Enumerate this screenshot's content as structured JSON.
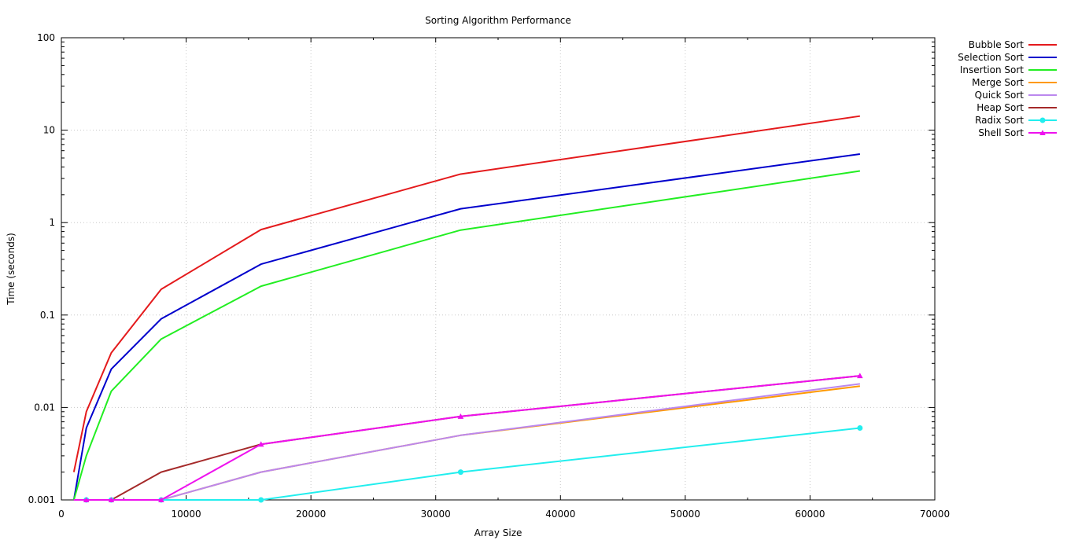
{
  "chart_data": {
    "type": "line",
    "title": "Sorting Algorithm Performance",
    "xlabel": "Array Size",
    "ylabel": "Time (seconds)",
    "xlim": [
      0,
      70000
    ],
    "ylim": [
      0.001,
      100
    ],
    "yscale": "log",
    "grid": true,
    "legend_position": "outside-right-top",
    "x_ticks": [
      0,
      10000,
      20000,
      30000,
      40000,
      50000,
      60000,
      70000
    ],
    "y_ticks": [
      0.001,
      0.01,
      0.1,
      1,
      10,
      100
    ],
    "x_tick_labels": [
      "0",
      "10000",
      "20000",
      "30000",
      "40000",
      "50000",
      "60000",
      "70000"
    ],
    "y_tick_labels": [
      "0.001",
      "0.01",
      "0.1",
      "1",
      "10",
      "100"
    ],
    "x": [
      1000,
      2000,
      4000,
      8000,
      16000,
      32000,
      64000
    ],
    "series": [
      {
        "name": "Bubble Sort",
        "color": "#e41a1c",
        "marker": "none",
        "values": [
          0.002,
          0.009,
          0.039,
          0.19,
          0.84,
          3.35,
          14.2
        ]
      },
      {
        "name": "Selection Sort",
        "color": "#0000cc",
        "marker": "none",
        "values": [
          0.001,
          0.006,
          0.026,
          0.091,
          0.355,
          1.41,
          5.52
        ]
      },
      {
        "name": "Insertion Sort",
        "color": "#22ee22",
        "marker": "none",
        "values": [
          0.001,
          0.003,
          0.015,
          0.055,
          0.205,
          0.83,
          3.62
        ]
      },
      {
        "name": "Merge Sort",
        "color": "#ff9900",
        "marker": "none",
        "values": [
          0.001,
          0.001,
          0.001,
          0.001,
          0.002,
          0.005,
          0.017
        ]
      },
      {
        "name": "Quick Sort",
        "color": "#bb88ee",
        "marker": "none",
        "values": [
          0.001,
          0.001,
          0.001,
          0.001,
          0.002,
          0.005,
          0.018
        ]
      },
      {
        "name": "Heap Sort",
        "color": "#a52a2a",
        "marker": "none",
        "values": [
          0.001,
          0.001,
          0.001,
          0.002,
          0.004,
          0.008,
          0.022
        ]
      },
      {
        "name": "Radix Sort",
        "color": "#22eeee",
        "marker": "circle",
        "values": [
          0.001,
          0.001,
          0.001,
          0.001,
          0.001,
          0.002,
          0.006
        ]
      },
      {
        "name": "Shell Sort",
        "color": "#ee11ee",
        "marker": "triangle",
        "values": [
          0.001,
          0.001,
          0.001,
          0.001,
          0.004,
          0.008,
          0.022
        ]
      }
    ]
  }
}
